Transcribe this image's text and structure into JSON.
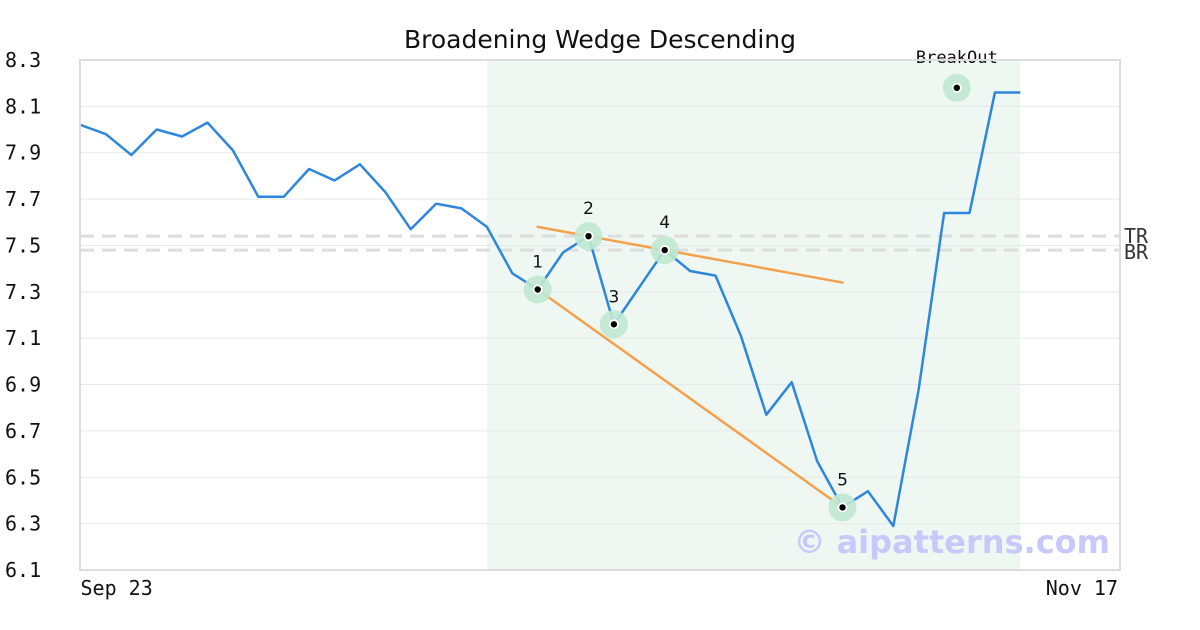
{
  "chart_data": {
    "type": "line",
    "title": "Broadening Wedge Descending",
    "xlabel": "",
    "ylabel": "",
    "ylim": [
      6.1,
      8.3
    ],
    "y_ticks": [
      "8.3",
      "8.1",
      "7.9",
      "7.7",
      "7.5",
      "7.3",
      "7.1",
      "6.9",
      "6.7",
      "6.5",
      "6.3",
      "6.1"
    ],
    "x_tick_labels": [
      {
        "label": "Sep 23",
        "index": 0
      },
      {
        "label": "Nov 17",
        "index": 41
      }
    ],
    "grid": true,
    "series": [
      {
        "values": [
          8.02,
          7.98,
          7.89,
          8.0,
          7.97,
          8.03,
          7.91,
          7.71,
          7.71,
          7.83,
          7.78,
          7.85,
          7.73,
          7.57,
          7.68,
          7.66,
          7.58,
          7.38,
          7.31,
          7.47,
          7.54,
          7.16,
          7.32,
          7.48,
          7.39,
          7.37,
          7.11,
          6.77,
          6.91,
          6.57,
          6.37,
          6.44,
          6.29,
          6.88,
          7.64,
          7.64,
          8.16,
          8.16
        ]
      }
    ],
    "pattern_region": {
      "x_start": 16,
      "x_end": 37
    },
    "reference_lines": [
      {
        "label": "TR",
        "value": 7.54
      },
      {
        "label": "BR",
        "value": 7.48
      }
    ],
    "trendlines": [
      {
        "from": {
          "x": 18,
          "y": 7.58
        },
        "to": {
          "x": 30,
          "y": 7.34
        }
      },
      {
        "from": {
          "x": 18,
          "y": 7.31
        },
        "to": {
          "x": 30,
          "y": 6.37
        }
      }
    ],
    "pattern_points": [
      {
        "label": "1",
        "x": 18,
        "y": 7.31
      },
      {
        "label": "2",
        "x": 20,
        "y": 7.54
      },
      {
        "label": "3",
        "x": 21,
        "y": 7.16
      },
      {
        "label": "4",
        "x": 23,
        "y": 7.48
      },
      {
        "label": "5",
        "x": 30,
        "y": 6.37
      }
    ],
    "breakout": {
      "label": "BreakOut",
      "x": 34.5,
      "y": 8.18
    },
    "colors": {
      "line": "#2e86de",
      "trendline": "#f5a04a",
      "region": "#eef7f2",
      "marker_halo": "#bfe8d2",
      "reference": "#dddddd"
    }
  },
  "watermark": "© aipatterns.com"
}
